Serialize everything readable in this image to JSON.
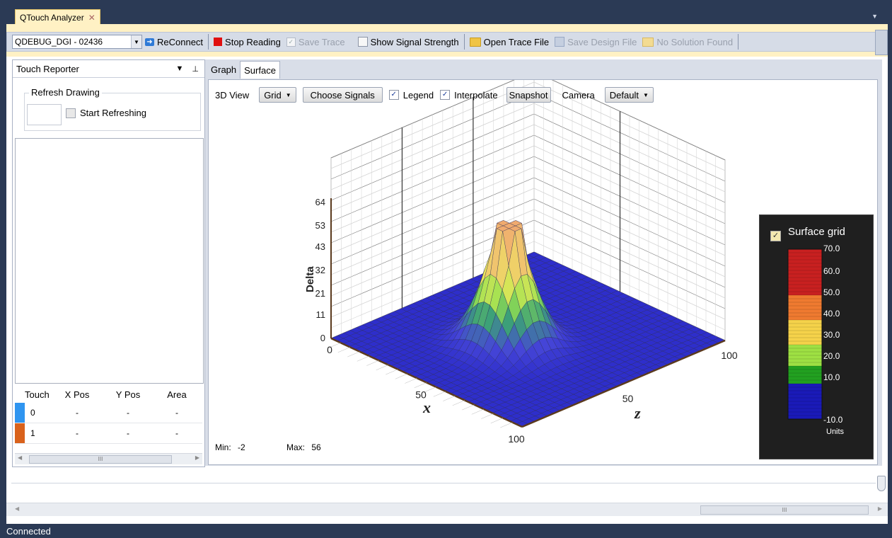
{
  "window": {
    "tab_title": "QTouch Analyzer",
    "tab_close": "✕"
  },
  "toolbar": {
    "device_combo": "QDEBUG_DGI - 02436",
    "reconnect": "ReConnect",
    "stop_reading": "Stop Reading",
    "save_trace": "Save Trace",
    "show_signal_strength": "Show Signal Strength",
    "open_trace_file": "Open Trace File",
    "save_design_file": "Save Design File",
    "no_solution": "No Solution Found"
  },
  "left_panel": {
    "title": "Touch Reporter",
    "refresh_group": "Refresh Drawing",
    "start_refreshing": "Start Refreshing",
    "table_headers": [
      "Touch",
      "X Pos",
      "Y Pos",
      "Area"
    ],
    "rows": [
      {
        "touch": "0",
        "x": "-",
        "y": "-",
        "area": "-",
        "color": "#2f95f0"
      },
      {
        "touch": "1",
        "x": "-",
        "y": "-",
        "area": "-",
        "color": "#d9621c"
      }
    ],
    "scroll_thumb": "III"
  },
  "tabs": [
    "Graph",
    "Surface"
  ],
  "view_toolbar": {
    "view_label": "3D View",
    "mode_select": "Grid",
    "choose_signals": "Choose Signals",
    "legend": "Legend",
    "interpolate": "Interpolate",
    "snapshot": "Snapshot",
    "camera_label": "Camera",
    "camera_select": "Default"
  },
  "chart_data": {
    "type": "3d-surface",
    "zlabel": "Delta",
    "xlabel": "x",
    "ylabel": "z",
    "delta_ticks": [
      "64",
      "53",
      "43",
      "32",
      "21",
      "11",
      "0"
    ],
    "x_ticks": [
      "0",
      "50",
      "100"
    ],
    "z_ticks": [
      "50",
      "100"
    ],
    "peak": {
      "x": 50,
      "z": 40,
      "delta": 56
    },
    "min": "-2",
    "max": "56",
    "min_label": "Min:",
    "max_label": "Max:",
    "legend": {
      "title": "Surface grid",
      "ticks": [
        "70.0",
        "60.0",
        "50.0",
        "40.0",
        "30.0",
        "20.0",
        "10.0",
        "-10.0"
      ],
      "units": "Units",
      "colors": [
        "#1a1ab8",
        "#2f9f2f",
        "#b5e23a",
        "#f5d84a",
        "#f0a030",
        "#c83020"
      ]
    }
  },
  "bottom_scroll_thumb": "III",
  "status": "Connected"
}
